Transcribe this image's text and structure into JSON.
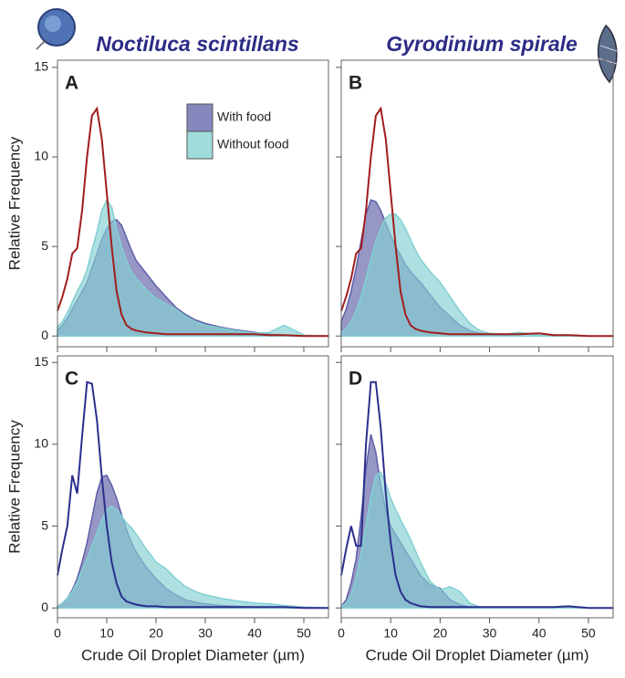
{
  "chart_data": [
    {
      "type": "area",
      "label": "A",
      "title": "Noctiluca scintillans",
      "ylabel": "Relative Frequency",
      "legend": "upper right",
      "x": [
        0,
        1,
        2,
        3,
        4,
        5,
        6,
        7,
        8,
        9,
        10,
        11,
        12,
        13,
        14,
        15,
        16,
        18,
        20,
        22,
        24,
        26,
        28,
        30,
        33,
        36,
        40,
        43,
        46,
        50,
        55
      ],
      "xlim": [
        0,
        55
      ],
      "ylim": [
        -0.6,
        15.4
      ],
      "xticks": [
        0,
        10,
        20,
        30,
        40,
        50
      ],
      "yticks": [
        0,
        5,
        10,
        15
      ],
      "series": [
        {
          "name": "With food",
          "color": "#5f5fa8",
          "values": [
            0.3,
            0.6,
            1,
            1.5,
            2,
            2.5,
            3,
            3.8,
            4.6,
            5.4,
            6,
            6.4,
            6.5,
            6.2,
            5.5,
            4.8,
            4.2,
            3.5,
            2.8,
            2.2,
            1.6,
            1.2,
            0.9,
            0.7,
            0.5,
            0.35,
            0.2,
            0.1,
            0.05,
            0.02,
            0
          ]
        },
        {
          "name": "Without food",
          "color": "#82d0d2",
          "values": [
            0.5,
            0.8,
            1.3,
            1.9,
            2.5,
            3,
            3.7,
            4.8,
            5.8,
            7,
            7.6,
            7.2,
            6,
            5,
            4.2,
            3.6,
            3.2,
            2.6,
            2.1,
            1.8,
            1.5,
            1.1,
            0.8,
            0.6,
            0.45,
            0.3,
            0.15,
            0.2,
            0.6,
            0.05,
            0
          ]
        },
        {
          "type": "line",
          "color": "#a11d1d",
          "values": [
            1.4,
            2.2,
            3.2,
            4.6,
            4.9,
            7,
            10,
            12.3,
            12.7,
            11,
            8,
            5,
            2.5,
            1.2,
            0.6,
            0.4,
            0.3,
            0.2,
            0.15,
            0.1,
            0.1,
            0.1,
            0.1,
            0.1,
            0.1,
            0.1,
            0.1,
            0.05,
            0.05,
            0,
            0
          ]
        }
      ]
    },
    {
      "type": "area",
      "label": "B",
      "title": "Gyrodinium spirale",
      "x": [
        0,
        1,
        2,
        3,
        4,
        5,
        6,
        7,
        8,
        9,
        10,
        11,
        12,
        13,
        14,
        15,
        16,
        18,
        20,
        22,
        24,
        26,
        28,
        30,
        33,
        36,
        40,
        43,
        46,
        50,
        55
      ],
      "xlim": [
        0,
        55
      ],
      "ylim": [
        -0.6,
        15.4
      ],
      "xticks": [
        0,
        10,
        20,
        30,
        40,
        50
      ],
      "yticks": [
        0,
        5,
        10,
        15
      ],
      "series": [
        {
          "name": "With food",
          "color": "#5f5fa8",
          "values": [
            0.8,
            1.5,
            2.5,
            3.8,
            5.3,
            6.8,
            7.6,
            7.5,
            7,
            6.3,
            5.6,
            5,
            4.5,
            4,
            3.6,
            3.3,
            3,
            2.3,
            1.6,
            1.1,
            0.6,
            0.3,
            0.15,
            0.1,
            0.05,
            0,
            0,
            0,
            0,
            0,
            0
          ]
        },
        {
          "name": "Without food",
          "color": "#82d0d2",
          "values": [
            0.2,
            0.4,
            0.8,
            1.4,
            2.2,
            3.2,
            4.3,
            5.3,
            6,
            6.6,
            6.8,
            6.8,
            6.5,
            6,
            5.4,
            4.8,
            4.3,
            3.6,
            3,
            2.2,
            1.4,
            0.7,
            0.3,
            0.15,
            0.1,
            0.2,
            0.05,
            0,
            0,
            0,
            0
          ]
        },
        {
          "type": "line",
          "color": "#a11d1d",
          "values": [
            1.4,
            2.2,
            3.2,
            4.6,
            4.9,
            7,
            10,
            12.3,
            12.7,
            11,
            8,
            5,
            2.5,
            1.2,
            0.6,
            0.4,
            0.3,
            0.2,
            0.15,
            0.1,
            0.1,
            0.1,
            0.1,
            0.1,
            0.1,
            0.1,
            0.15,
            0.05,
            0.05,
            0,
            0
          ]
        }
      ]
    },
    {
      "type": "area",
      "label": "C",
      "ylabel": "Relative Frequency",
      "xlabel": "Crude Oil Droplet Diameter (µm)",
      "x": [
        0,
        1,
        2,
        3,
        4,
        5,
        6,
        7,
        8,
        9,
        10,
        11,
        12,
        13,
        14,
        15,
        16,
        18,
        20,
        22,
        24,
        26,
        28,
        30,
        33,
        36,
        40,
        43,
        46,
        50,
        55
      ],
      "xlim": [
        0,
        55
      ],
      "ylim": [
        -0.6,
        15.4
      ],
      "xticks": [
        0,
        10,
        20,
        30,
        40,
        50
      ],
      "yticks": [
        0,
        5,
        10,
        15
      ],
      "series": [
        {
          "name": "With food",
          "color": "#5f5fa8",
          "values": [
            0.1,
            0.3,
            0.6,
            1.1,
            1.8,
            2.8,
            4,
            5.5,
            7,
            8,
            8.1,
            7.5,
            6.7,
            5.7,
            4.8,
            4,
            3.4,
            2.5,
            1.8,
            1.2,
            0.8,
            0.5,
            0.35,
            0.25,
            0.15,
            0.1,
            0.05,
            0.02,
            0,
            0,
            0
          ]
        },
        {
          "name": "Without food",
          "color": "#82d0d2",
          "values": [
            0.1,
            0.3,
            0.6,
            1,
            1.6,
            2.3,
            3,
            3.8,
            4.6,
            5.4,
            6,
            6.2,
            6,
            5.6,
            5.2,
            4.9,
            4.5,
            3.6,
            2.8,
            2.4,
            1.8,
            1.3,
            1,
            0.8,
            0.6,
            0.45,
            0.3,
            0.25,
            0.15,
            0.05,
            0
          ]
        },
        {
          "type": "line",
          "color": "#2b2f8c",
          "values": [
            2,
            3.6,
            5,
            8.1,
            7,
            10.5,
            13.8,
            13.7,
            11.5,
            8,
            5,
            2.8,
            1.5,
            0.7,
            0.4,
            0.3,
            0.2,
            0.1,
            0.1,
            0.05,
            0.05,
            0.05,
            0.05,
            0.05,
            0.05,
            0.05,
            0.05,
            0.05,
            0.05,
            0,
            0
          ]
        }
      ]
    },
    {
      "type": "area",
      "label": "D",
      "xlabel": "Crude Oil Droplet Diameter (µm)",
      "x": [
        0,
        1,
        2,
        3,
        4,
        5,
        6,
        7,
        8,
        9,
        10,
        11,
        12,
        13,
        14,
        15,
        16,
        18,
        20,
        22,
        24,
        26,
        28,
        30,
        33,
        36,
        40,
        43,
        46,
        50,
        55
      ],
      "xlim": [
        0,
        55
      ],
      "ylim": [
        -0.6,
        15.4
      ],
      "xticks": [
        0,
        10,
        20,
        30,
        40,
        50
      ],
      "yticks": [
        0,
        5,
        10,
        15
      ],
      "series": [
        {
          "name": "With food",
          "color": "#5f5fa8",
          "values": [
            0.1,
            0.5,
            1.5,
            3,
            5.5,
            8.5,
            10.6,
            9.5,
            7.5,
            6,
            5,
            4.5,
            4,
            3.5,
            3,
            2.5,
            2,
            1.4,
            1.2,
            0.5,
            0.2,
            0.05,
            0,
            0,
            0,
            0,
            0,
            0,
            0,
            0,
            0
          ]
        },
        {
          "name": "Without food",
          "color": "#82d0d2",
          "values": [
            0.1,
            0.3,
            0.8,
            1.8,
            3.3,
            5,
            6.8,
            8.1,
            8.3,
            7.6,
            6.7,
            6,
            5.4,
            4.8,
            4.2,
            3.5,
            2.8,
            1.6,
            1.1,
            1.3,
            1,
            0.3,
            0.05,
            0,
            0,
            0,
            0,
            0,
            0,
            0,
            0
          ]
        },
        {
          "type": "line",
          "color": "#2b2f8c",
          "values": [
            2,
            3.6,
            5,
            3.8,
            3.8,
            10,
            13.8,
            13.8,
            11,
            7,
            4,
            2,
            1,
            0.5,
            0.3,
            0.2,
            0.1,
            0.05,
            0.05,
            0.05,
            0.05,
            0.05,
            0.05,
            0.05,
            0.05,
            0.05,
            0.05,
            0.05,
            0.1,
            0,
            0
          ]
        }
      ]
    }
  ]
}
